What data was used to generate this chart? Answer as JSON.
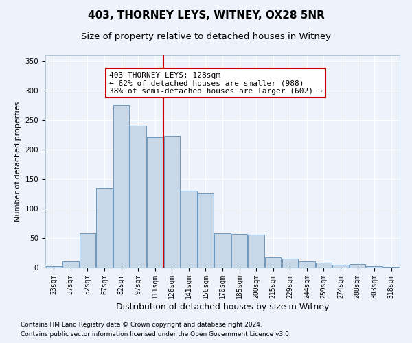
{
  "title": "403, THORNEY LEYS, WITNEY, OX28 5NR",
  "subtitle": "Size of property relative to detached houses in Witney",
  "xlabel": "Distribution of detached houses by size in Witney",
  "ylabel": "Number of detached properties",
  "categories": [
    "23sqm",
    "37sqm",
    "52sqm",
    "67sqm",
    "82sqm",
    "97sqm",
    "111sqm",
    "126sqm",
    "141sqm",
    "156sqm",
    "170sqm",
    "185sqm",
    "200sqm",
    "215sqm",
    "229sqm",
    "244sqm",
    "259sqm",
    "274sqm",
    "288sqm",
    "303sqm",
    "318sqm"
  ],
  "values": [
    2,
    10,
    58,
    135,
    275,
    240,
    221,
    223,
    130,
    125,
    58,
    57,
    56,
    18,
    15,
    10,
    8,
    5,
    6,
    2,
    1
  ],
  "bar_color": "#c8d8e8",
  "bar_edge_color": "#5b8db8",
  "vline_color": "#cc0000",
  "vline_index": 7,
  "annotation_text": "403 THORNEY LEYS: 128sqm\n← 62% of detached houses are smaller (988)\n38% of semi-detached houses are larger (602) →",
  "annotation_box_facecolor": "#ffffff",
  "annotation_box_edgecolor": "#cc0000",
  "background_color": "#eef2fb",
  "grid_color": "#ffffff",
  "title_fontsize": 11,
  "subtitle_fontsize": 9.5,
  "xlabel_fontsize": 9,
  "ylabel_fontsize": 8,
  "tick_fontsize": 7,
  "annotation_fontsize": 8,
  "footer1": "Contains HM Land Registry data © Crown copyright and database right 2024.",
  "footer2": "Contains public sector information licensed under the Open Government Licence v3.0.",
  "footer_fontsize": 6.5,
  "ylim": [
    0,
    360
  ],
  "yticks": [
    0,
    50,
    100,
    150,
    200,
    250,
    300,
    350
  ]
}
